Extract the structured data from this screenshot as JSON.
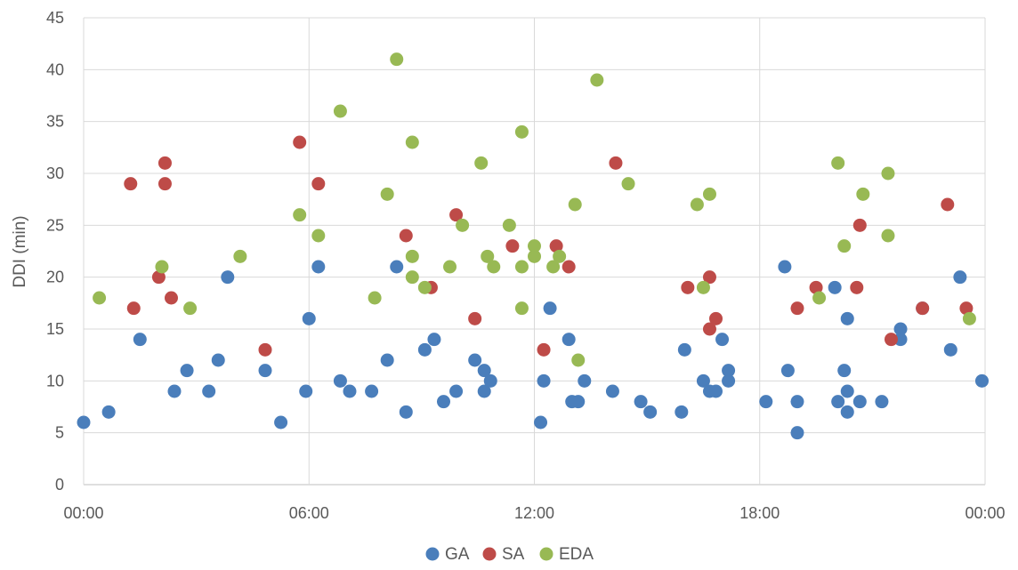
{
  "chart_data": {
    "type": "scatter",
    "title": "",
    "xlabel": "",
    "ylabel": "DDI (min)",
    "xlim": [
      "00:00",
      "24:00"
    ],
    "ylim": [
      0,
      45
    ],
    "x_ticks": [
      "00:00",
      "06:00",
      "12:00",
      "18:00",
      "00:00"
    ],
    "y_ticks": [
      0,
      5,
      10,
      15,
      20,
      25,
      30,
      35,
      40,
      45
    ],
    "grid": true,
    "legend_position": "bottom",
    "series": [
      {
        "name": "GA",
        "color": "#4A7EBB",
        "points": [
          [
            "00:00",
            6
          ],
          [
            "00:40",
            7
          ],
          [
            "01:30",
            14
          ],
          [
            "02:25",
            9
          ],
          [
            "02:45",
            11
          ],
          [
            "03:20",
            9
          ],
          [
            "03:35",
            12
          ],
          [
            "03:50",
            20
          ],
          [
            "04:50",
            11
          ],
          [
            "05:15",
            6
          ],
          [
            "05:55",
            9
          ],
          [
            "06:00",
            16
          ],
          [
            "06:15",
            21
          ],
          [
            "06:50",
            10
          ],
          [
            "07:05",
            9
          ],
          [
            "07:40",
            9
          ],
          [
            "08:05",
            12
          ],
          [
            "08:20",
            21
          ],
          [
            "08:35",
            7
          ],
          [
            "09:05",
            13
          ],
          [
            "09:20",
            14
          ],
          [
            "09:35",
            8
          ],
          [
            "09:55",
            9
          ],
          [
            "10:25",
            12
          ],
          [
            "10:40",
            9
          ],
          [
            "10:40",
            11
          ],
          [
            "10:50",
            10
          ],
          [
            "12:10",
            6
          ],
          [
            "12:15",
            10
          ],
          [
            "12:25",
            17
          ],
          [
            "12:55",
            14
          ],
          [
            "13:00",
            8
          ],
          [
            "13:10",
            8
          ],
          [
            "13:20",
            10
          ],
          [
            "14:05",
            9
          ],
          [
            "14:50",
            8
          ],
          [
            "15:05",
            7
          ],
          [
            "15:55",
            7
          ],
          [
            "16:00",
            13
          ],
          [
            "16:30",
            10
          ],
          [
            "16:40",
            9
          ],
          [
            "16:50",
            9
          ],
          [
            "17:00",
            14
          ],
          [
            "17:10",
            11
          ],
          [
            "17:10",
            10
          ],
          [
            "18:10",
            8
          ],
          [
            "18:40",
            21
          ],
          [
            "18:45",
            11
          ],
          [
            "19:00",
            8
          ],
          [
            "19:00",
            5
          ],
          [
            "20:00",
            19
          ],
          [
            "20:05",
            8
          ],
          [
            "20:15",
            11
          ],
          [
            "20:20",
            9
          ],
          [
            "20:20",
            7
          ],
          [
            "20:20",
            16
          ],
          [
            "20:40",
            8
          ],
          [
            "21:15",
            8
          ],
          [
            "21:45",
            15
          ],
          [
            "21:45",
            14
          ],
          [
            "22:20",
            17
          ],
          [
            "23:05",
            13
          ],
          [
            "23:20",
            20
          ],
          [
            "23:55",
            10
          ]
        ]
      },
      {
        "name": "SA",
        "color": "#BE4B48",
        "points": [
          [
            "01:15",
            29
          ],
          [
            "01:20",
            17
          ],
          [
            "02:00",
            20
          ],
          [
            "02:10",
            31
          ],
          [
            "02:10",
            29
          ],
          [
            "02:20",
            18
          ],
          [
            "04:50",
            13
          ],
          [
            "05:45",
            33
          ],
          [
            "06:15",
            29
          ],
          [
            "08:35",
            24
          ],
          [
            "09:15",
            19
          ],
          [
            "09:55",
            26
          ],
          [
            "10:25",
            16
          ],
          [
            "11:25",
            23
          ],
          [
            "12:15",
            13
          ],
          [
            "12:35",
            23
          ],
          [
            "12:55",
            21
          ],
          [
            "14:10",
            31
          ],
          [
            "16:05",
            19
          ],
          [
            "16:40",
            20
          ],
          [
            "16:40",
            15
          ],
          [
            "16:50",
            16
          ],
          [
            "19:00",
            17
          ],
          [
            "19:30",
            19
          ],
          [
            "20:35",
            19
          ],
          [
            "20:40",
            25
          ],
          [
            "21:30",
            14
          ],
          [
            "22:20",
            17
          ],
          [
            "23:00",
            27
          ],
          [
            "23:30",
            17
          ]
        ]
      },
      {
        "name": "EDA",
        "color": "#98B954",
        "points": [
          [
            "00:25",
            18
          ],
          [
            "02:05",
            21
          ],
          [
            "02:50",
            17
          ],
          [
            "04:10",
            22
          ],
          [
            "05:45",
            26
          ],
          [
            "06:15",
            24
          ],
          [
            "06:50",
            36
          ],
          [
            "07:45",
            18
          ],
          [
            "08:05",
            28
          ],
          [
            "08:20",
            41
          ],
          [
            "08:45",
            33
          ],
          [
            "08:45",
            22
          ],
          [
            "08:45",
            20
          ],
          [
            "09:05",
            19
          ],
          [
            "09:45",
            21
          ],
          [
            "10:05",
            25
          ],
          [
            "10:35",
            31
          ],
          [
            "10:45",
            22
          ],
          [
            "10:55",
            21
          ],
          [
            "11:20",
            25
          ],
          [
            "11:40",
            21
          ],
          [
            "11:40",
            34
          ],
          [
            "11:40",
            17
          ],
          [
            "12:00",
            23
          ],
          [
            "12:00",
            22
          ],
          [
            "12:30",
            21
          ],
          [
            "12:40",
            22
          ],
          [
            "13:05",
            27
          ],
          [
            "13:10",
            12
          ],
          [
            "13:40",
            39
          ],
          [
            "14:30",
            29
          ],
          [
            "16:20",
            27
          ],
          [
            "16:30",
            19
          ],
          [
            "16:40",
            28
          ],
          [
            "19:35",
            18
          ],
          [
            "20:05",
            31
          ],
          [
            "20:15",
            23
          ],
          [
            "20:45",
            28
          ],
          [
            "21:25",
            30
          ],
          [
            "21:25",
            24
          ],
          [
            "23:35",
            16
          ]
        ]
      }
    ]
  }
}
